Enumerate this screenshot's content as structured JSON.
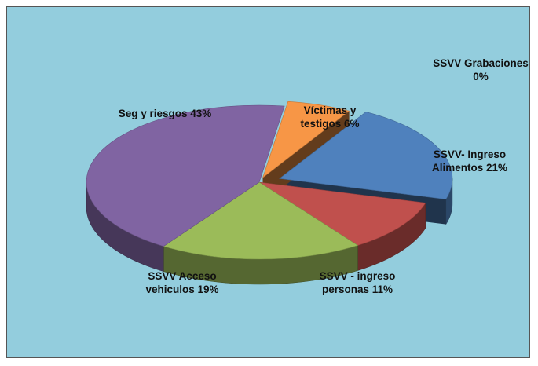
{
  "chart_data": {
    "type": "pie",
    "categories": [
      "SSVV Grabaciones",
      "SSVV- Ingreso Alimentos",
      "SSVV - ingreso personas",
      "SSVV Acceso vehiculos",
      "Seg y riesgos",
      "Víctimas y testigos"
    ],
    "values": [
      0,
      21,
      11,
      19,
      43,
      6
    ],
    "value_labels": [
      "0%",
      "21%",
      "11%",
      "19%",
      "43%",
      "6%"
    ],
    "colors": [
      "#4bacc6",
      "#4f81bd",
      "#c0504d",
      "#9bbb59",
      "#8064a2",
      "#f79646"
    ]
  }
}
